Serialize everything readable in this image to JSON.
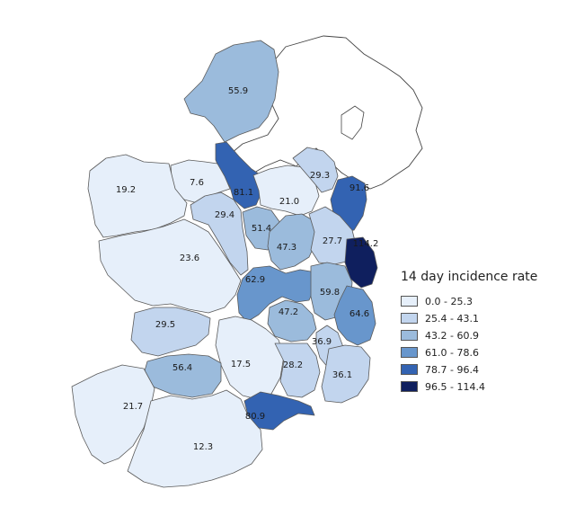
{
  "map": {
    "counties": [
      {
        "id": "donegal",
        "value": "55.9",
        "class": 2
      },
      {
        "id": "leitrim",
        "value": "81.1",
        "class": 4
      },
      {
        "id": "sligo",
        "value": "7.6",
        "class": 0
      },
      {
        "id": "mayo",
        "value": "19.2",
        "class": 0
      },
      {
        "id": "roscommon",
        "value": "29.4",
        "class": 1
      },
      {
        "id": "cavan",
        "value": "21.0",
        "class": 0
      },
      {
        "id": "monaghan",
        "value": "29.3",
        "class": 1
      },
      {
        "id": "louth",
        "value": "91.6",
        "class": 4
      },
      {
        "id": "longford",
        "value": "51.4",
        "class": 2
      },
      {
        "id": "westmeath",
        "value": "47.3",
        "class": 2
      },
      {
        "id": "meath",
        "value": "27.7",
        "class": 1
      },
      {
        "id": "dublin",
        "value": "114.2",
        "class": 5
      },
      {
        "id": "galway",
        "value": "23.6",
        "class": 0
      },
      {
        "id": "offaly",
        "value": "62.9",
        "class": 3
      },
      {
        "id": "kildare",
        "value": "59.8",
        "class": 2
      },
      {
        "id": "laois",
        "value": "47.2",
        "class": 2
      },
      {
        "id": "wicklow",
        "value": "64.6",
        "class": 3
      },
      {
        "id": "clare",
        "value": "29.5",
        "class": 1
      },
      {
        "id": "carlow",
        "value": "36.9",
        "class": 1
      },
      {
        "id": "tipperary",
        "value": "17.5",
        "class": 0
      },
      {
        "id": "kilkenny",
        "value": "28.2",
        "class": 1
      },
      {
        "id": "wexford",
        "value": "36.1",
        "class": 1
      },
      {
        "id": "limerick",
        "value": "56.4",
        "class": 2
      },
      {
        "id": "kerry",
        "value": "21.7",
        "class": 0
      },
      {
        "id": "cork",
        "value": "12.3",
        "class": 0
      },
      {
        "id": "waterford",
        "value": "80.9",
        "class": 4
      }
    ]
  },
  "legend": {
    "title": "14 day incidence rate",
    "classes": [
      {
        "label": "0.0 - 25.3",
        "color": "#e6effa"
      },
      {
        "label": "25.4 - 43.1",
        "color": "#c2d5ee"
      },
      {
        "label": "43.2 - 60.9",
        "color": "#9bbbdc"
      },
      {
        "label": "61.0 - 78.6",
        "color": "#6896cc"
      },
      {
        "label": "78.7 - 96.4",
        "color": "#3363b2"
      },
      {
        "label": "96.5 - 114.4",
        "color": "#0f1f5e"
      }
    ]
  }
}
